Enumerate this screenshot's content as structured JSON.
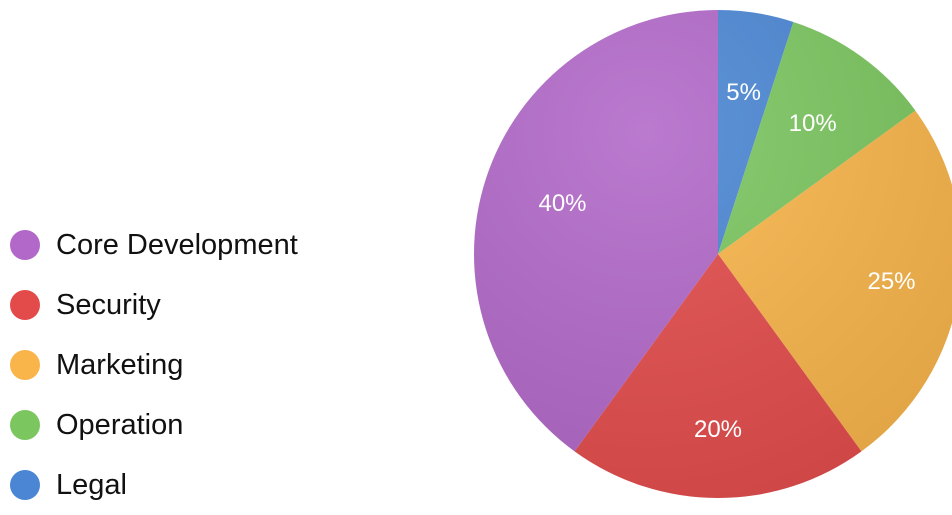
{
  "chart_data": {
    "type": "pie",
    "categories": [
      "Legal",
      "Operation",
      "Marketing",
      "Security",
      "Core Development"
    ],
    "values": [
      5,
      10,
      25,
      20,
      40
    ],
    "value_labels": [
      "5%",
      "10%",
      "25%",
      "20%",
      "40%"
    ],
    "colors": [
      "#4a86d4",
      "#7bc65f",
      "#f9b54a",
      "#e34b4b",
      "#b168c8"
    ],
    "legend_position": "left"
  },
  "legend": {
    "items": [
      {
        "label": "Core Development",
        "color": "#b168c8"
      },
      {
        "label": "Security",
        "color": "#e34b4b"
      },
      {
        "label": "Marketing",
        "color": "#f9b54a"
      },
      {
        "label": "Operation",
        "color": "#7bc65f"
      },
      {
        "label": "Legal",
        "color": "#4a86d4"
      }
    ]
  }
}
